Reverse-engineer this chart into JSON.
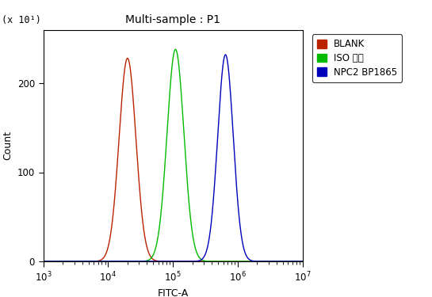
{
  "title": "Multi-sample : P1",
  "xlabel": "FITC-A",
  "ylabel": "Count",
  "ylabel_multiplier": "(x 10¹)",
  "xlim": [
    1000.0,
    10000000.0
  ],
  "ylim": [
    0,
    260
  ],
  "yticks": [
    0,
    100,
    200
  ],
  "curves": [
    {
      "label": "BLANK",
      "color": "#bb2200",
      "peak_x": 20000.0,
      "sigma": 0.13,
      "peak_y": 228
    },
    {
      "label": "ISO 多抗",
      "color": "#00bb00",
      "peak_x": 110000.0,
      "sigma": 0.13,
      "peak_y": 238
    },
    {
      "label": "NPC2 BP1865",
      "color": "#0000bb",
      "peak_x": 650000.0,
      "sigma": 0.12,
      "peak_y": 232
    }
  ],
  "background_color": "#ffffff",
  "title_fontsize": 10,
  "axis_fontsize": 9,
  "tick_fontsize": 8.5,
  "legend_fontsize": 8.5
}
